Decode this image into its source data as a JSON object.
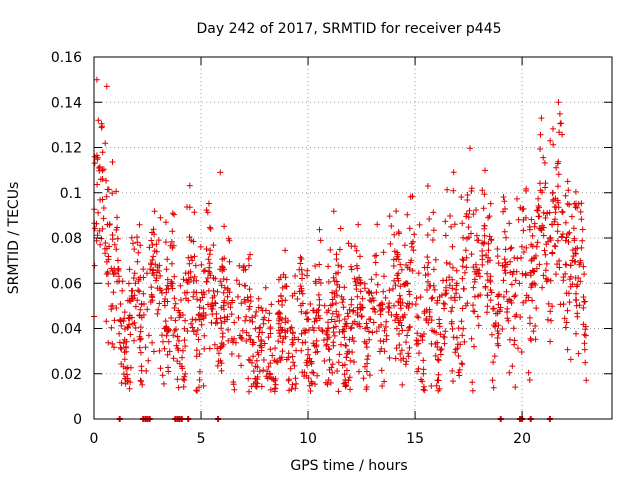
{
  "chart_data": {
    "type": "scatter",
    "title": "Day 242 of 2017, SRMTID for receiver p445",
    "xlabel": "GPS time / hours",
    "ylabel": "SRMTID / TECUs",
    "xlim": [
      0,
      24.2
    ],
    "ylim": [
      0,
      0.16
    ],
    "x_ticks": [
      0,
      5,
      10,
      15,
      20
    ],
    "x_tick_labels": [
      "0",
      "5",
      "10",
      "15",
      "20"
    ],
    "y_ticks": [
      0,
      0.02,
      0.04,
      0.06,
      0.08,
      0.1,
      0.12,
      0.14,
      0.16
    ],
    "y_tick_labels": [
      "0",
      "0.02",
      "0.04",
      "0.06",
      "0.08",
      "0.1",
      "0.12",
      "0.14",
      "0.16"
    ],
    "grid": true,
    "marker": "+",
    "color": "#e00000",
    "x_range_hours": [
      0,
      23
    ],
    "approx_points": 1700,
    "trend": [
      {
        "x": 0.0,
        "y": 0.085
      },
      {
        "x": 0.4,
        "y": 0.1
      },
      {
        "x": 0.8,
        "y": 0.075
      },
      {
        "x": 1.2,
        "y": 0.045
      },
      {
        "x": 2.0,
        "y": 0.05
      },
      {
        "x": 3.0,
        "y": 0.055
      },
      {
        "x": 4.0,
        "y": 0.045
      },
      {
        "x": 5.0,
        "y": 0.055
      },
      {
        "x": 6.0,
        "y": 0.05
      },
      {
        "x": 7.0,
        "y": 0.04
      },
      {
        "x": 8.0,
        "y": 0.03
      },
      {
        "x": 9.0,
        "y": 0.035
      },
      {
        "x": 10.0,
        "y": 0.04
      },
      {
        "x": 11.0,
        "y": 0.045
      },
      {
        "x": 12.0,
        "y": 0.045
      },
      {
        "x": 13.0,
        "y": 0.05
      },
      {
        "x": 14.0,
        "y": 0.055
      },
      {
        "x": 15.0,
        "y": 0.05
      },
      {
        "x": 16.0,
        "y": 0.045
      },
      {
        "x": 17.0,
        "y": 0.06
      },
      {
        "x": 18.0,
        "y": 0.07
      },
      {
        "x": 19.0,
        "y": 0.055
      },
      {
        "x": 20.0,
        "y": 0.065
      },
      {
        "x": 21.0,
        "y": 0.075
      },
      {
        "x": 21.6,
        "y": 0.09
      },
      {
        "x": 22.0,
        "y": 0.085
      },
      {
        "x": 22.5,
        "y": 0.06
      },
      {
        "x": 23.0,
        "y": 0.055
      }
    ],
    "zero_value_points_x": [
      1.2,
      2.3,
      2.4,
      2.5,
      2.6,
      3.8,
      3.9,
      4.0,
      4.1,
      4.4,
      5.8,
      19.0,
      19.9,
      20.0,
      20.4,
      21.3
    ],
    "notable_peaks": [
      {
        "x": 0.6,
        "y": 0.147
      },
      {
        "x": 0.2,
        "y": 0.132
      },
      {
        "x": 5.9,
        "y": 0.109
      },
      {
        "x": 15.6,
        "y": 0.103
      },
      {
        "x": 20.9,
        "y": 0.133
      },
      {
        "x": 21.7,
        "y": 0.14
      }
    ]
  }
}
